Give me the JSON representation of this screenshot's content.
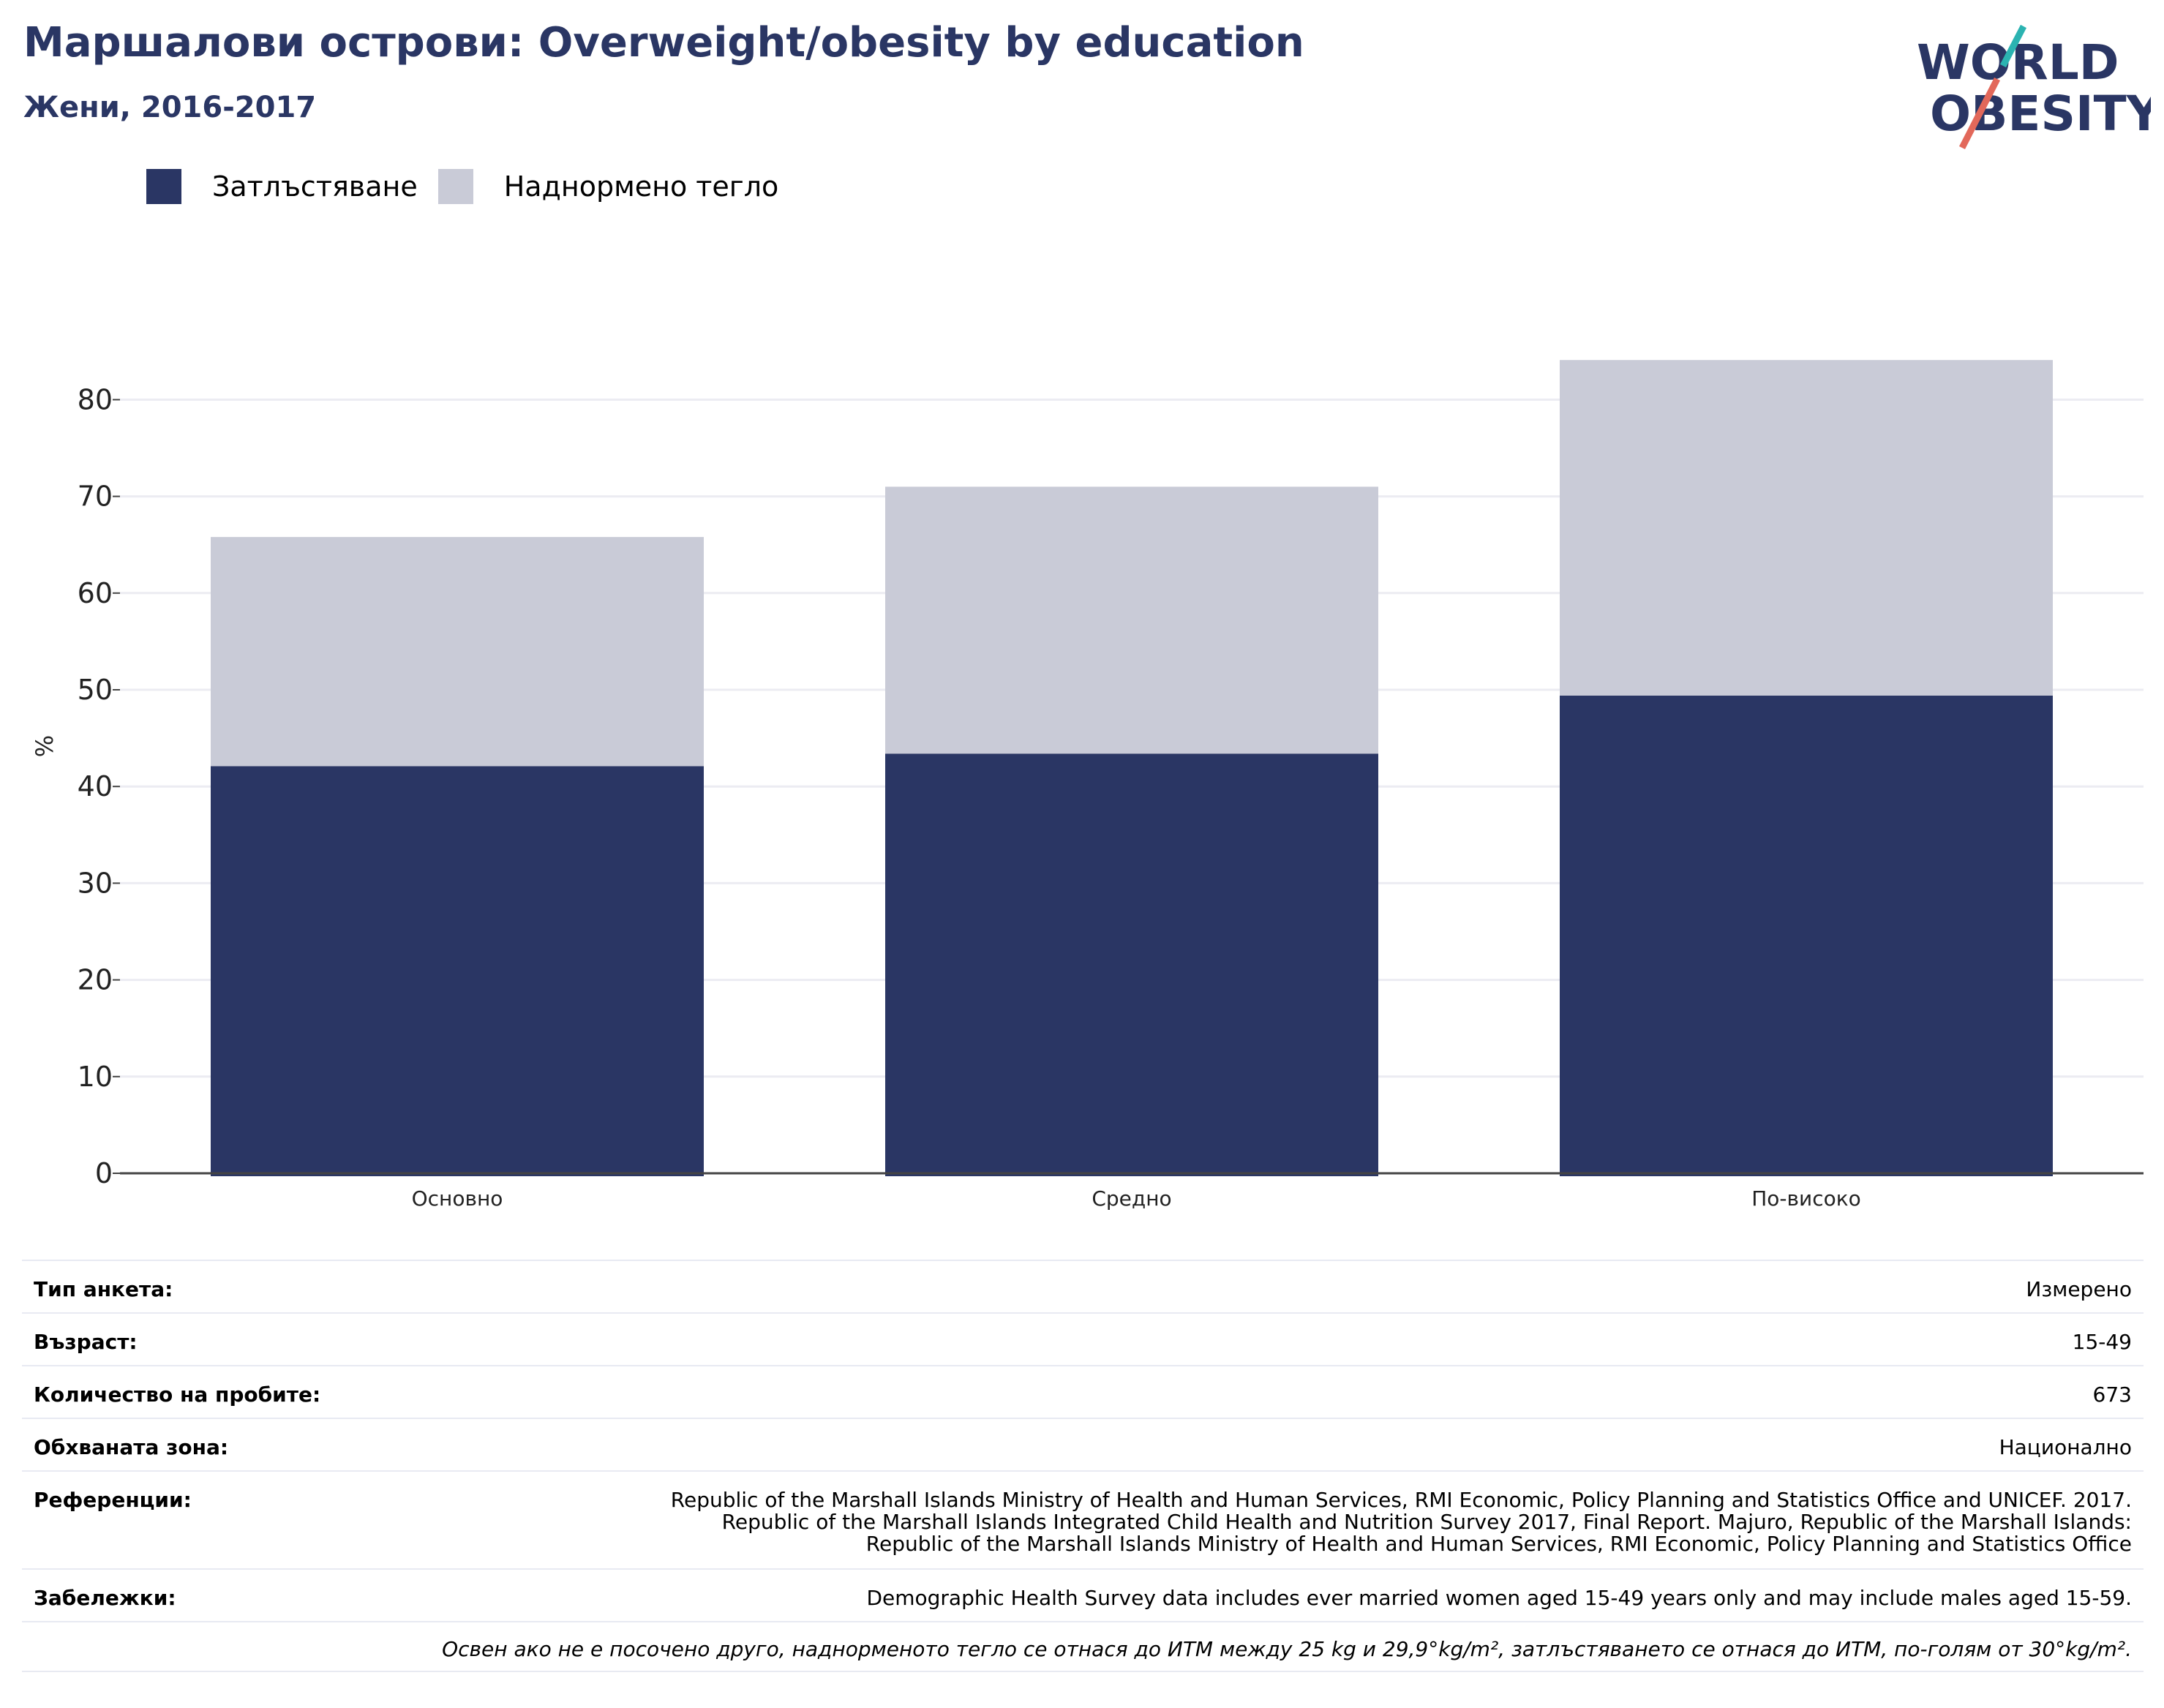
{
  "header": {
    "title": "Маршалови острови: Overweight/obesity by education",
    "subtitle": "Жени, 2016-2017"
  },
  "logo": {
    "line1": "WORLD",
    "line2": "OBESITY"
  },
  "colors": {
    "obesity": "#2a3664",
    "overweight": "#c9cbd7",
    "title": "#2a3664",
    "logo_teal": "#2bb3b1",
    "logo_red": "#e2685a"
  },
  "chart_data": {
    "type": "bar",
    "stacked": true,
    "categories": [
      "Основно",
      "Средно",
      "По-високо"
    ],
    "series": [
      {
        "name": "Затлъстяване",
        "values": [
          42.1,
          43.4,
          49.4
        ]
      },
      {
        "name": "Наднормено тегло",
        "values": [
          23.7,
          27.6,
          34.7
        ]
      }
    ],
    "ylabel": "%",
    "ylim": [
      0,
      85
    ],
    "yticks": [
      0,
      10,
      20,
      30,
      40,
      50,
      60,
      70,
      80
    ],
    "grid": true,
    "legend": "top-left"
  },
  "meta": {
    "rows": [
      {
        "label": "Тип анкета:",
        "value": "Измерено"
      },
      {
        "label": "Възраст:",
        "value": "15-49"
      },
      {
        "label": "Количество на пробите:",
        "value": "673"
      },
      {
        "label": "Обхваната зона:",
        "value": "Национално"
      },
      {
        "label": "Референции:",
        "value": "Republic of the Marshall Islands Ministry of Health and Human Services, RMI Economic, Policy Planning and Statistics Office and UNICEF. 2017. Republic of the Marshall Islands Integrated Child Health and Nutrition Survey 2017, Final Report. Majuro, Republic of the Marshall Islands: Republic of the Marshall Islands Ministry of Health and Human Services, RMI Economic, Policy Planning and Statistics Office"
      },
      {
        "label": "Забележки:",
        "value": "Demographic Health Survey data includes ever married women aged 15-49 years only and may include males aged 15-59."
      }
    ],
    "note": "Освен ако не е посочено друго, наднорменото тегло се отнася до ИТМ между 25 kg и 29,9°kg/m², затлъстяването се отнася до ИТМ, по-голям от 30°kg/m²."
  }
}
